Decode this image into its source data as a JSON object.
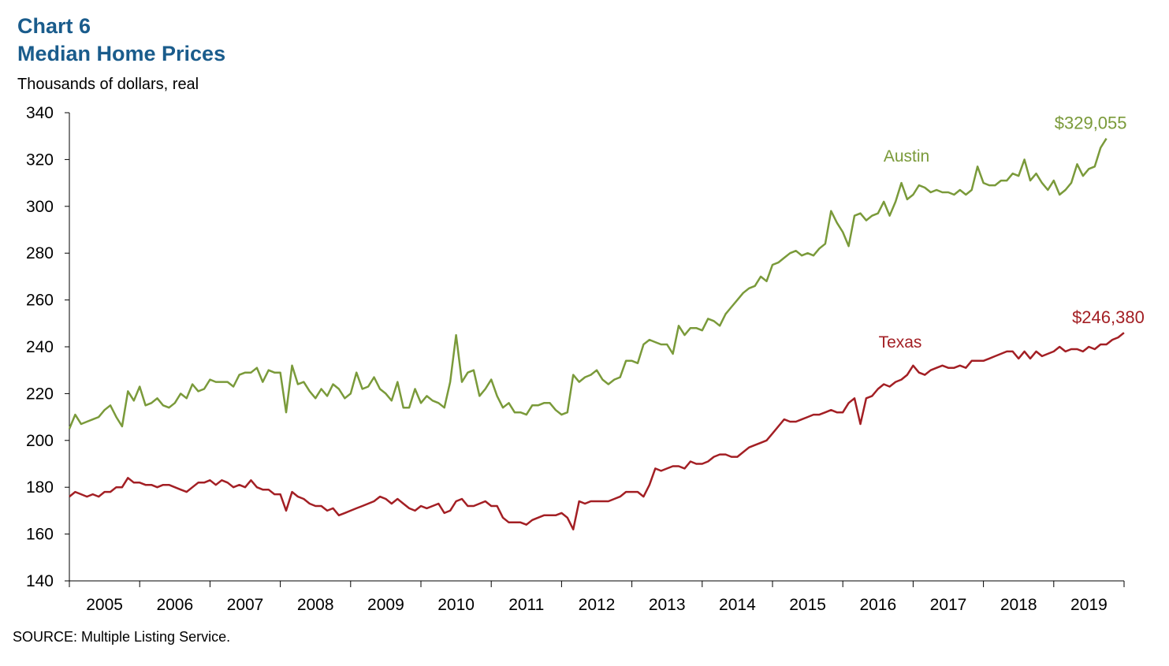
{
  "header": {
    "chart_label": "Chart 6",
    "title": "Median Home Prices",
    "units": "Thousands of dollars, real"
  },
  "footer": {
    "source": "SOURCE: Multiple Listing Service."
  },
  "colors": {
    "austin": "#7a9a3a",
    "texas": "#a31f24",
    "title": "#1a5c8c"
  },
  "chart_data": {
    "type": "line",
    "title": "Median Home Prices",
    "ylabel": "Thousands of dollars, real",
    "ylim": [
      140,
      340
    ],
    "yticks": [
      140,
      160,
      180,
      200,
      220,
      240,
      260,
      280,
      300,
      320,
      340
    ],
    "xlim": [
      2004.5,
      2019.5
    ],
    "year_labels": [
      "2005",
      "2006",
      "2007",
      "2008",
      "2009",
      "2010",
      "2011",
      "2012",
      "2013",
      "2014",
      "2015",
      "2016",
      "2017",
      "2018",
      "2019"
    ],
    "grid": false,
    "series": [
      {
        "name": "Austin",
        "end_label": "$329,055",
        "start": 2004.5,
        "step": 0.08333,
        "values": [
          205,
          211,
          207,
          208,
          209,
          210,
          213,
          215,
          210,
          206,
          221,
          217,
          223,
          215,
          216,
          218,
          215,
          214,
          216,
          220,
          218,
          224,
          221,
          222,
          226,
          225,
          225,
          225,
          223,
          228,
          229,
          229,
          231,
          225,
          230,
          229,
          229,
          212,
          232,
          224,
          225,
          221,
          218,
          222,
          219,
          224,
          222,
          218,
          220,
          229,
          222,
          223,
          227,
          222,
          220,
          217,
          225,
          214,
          214,
          222,
          216,
          219,
          217,
          216,
          214,
          225,
          245,
          225,
          229,
          230,
          219,
          222,
          226,
          219,
          214,
          216,
          212,
          212,
          211,
          215,
          215,
          216,
          216,
          213,
          211,
          212,
          228,
          225,
          227,
          228,
          230,
          226,
          224,
          226,
          227,
          234,
          234,
          233,
          241,
          243,
          242,
          241,
          241,
          237,
          249,
          245,
          248,
          248,
          247,
          252,
          251,
          249,
          254,
          257,
          260,
          263,
          265,
          266,
          270,
          268,
          275,
          276,
          278,
          280,
          281,
          279,
          280,
          279,
          282,
          284,
          298,
          293,
          289,
          283,
          296,
          297,
          294,
          296,
          297,
          302,
          296,
          302,
          310,
          303,
          305,
          309,
          308,
          306,
          307,
          306,
          306,
          305,
          307,
          305,
          307,
          317,
          310,
          309,
          309,
          311,
          311,
          314,
          313,
          320,
          311,
          314,
          310,
          307,
          311,
          305,
          307,
          310,
          318,
          313,
          316,
          317,
          325,
          329
        ]
      },
      {
        "name": "Texas",
        "end_label": "$246,380",
        "start": 2004.5,
        "step": 0.08333,
        "values": [
          176,
          178,
          177,
          176,
          177,
          176,
          178,
          178,
          180,
          180,
          184,
          182,
          182,
          181,
          181,
          180,
          181,
          181,
          180,
          179,
          178,
          180,
          182,
          182,
          183,
          181,
          183,
          182,
          180,
          181,
          180,
          183,
          180,
          179,
          179,
          177,
          177,
          170,
          178,
          176,
          175,
          173,
          172,
          172,
          170,
          171,
          168,
          169,
          170,
          171,
          172,
          173,
          174,
          176,
          175,
          173,
          175,
          173,
          171,
          170,
          172,
          171,
          172,
          173,
          169,
          170,
          174,
          175,
          172,
          172,
          173,
          174,
          172,
          172,
          167,
          165,
          165,
          165,
          164,
          166,
          167,
          168,
          168,
          168,
          169,
          167,
          162,
          174,
          173,
          174,
          174,
          174,
          174,
          175,
          176,
          178,
          178,
          178,
          176,
          181,
          188,
          187,
          188,
          189,
          189,
          188,
          191,
          190,
          190,
          191,
          193,
          194,
          194,
          193,
          193,
          195,
          197,
          198,
          199,
          200,
          203,
          206,
          209,
          208,
          208,
          209,
          210,
          211,
          211,
          212,
          213,
          212,
          212,
          216,
          218,
          207,
          218,
          219,
          222,
          224,
          223,
          225,
          226,
          228,
          232,
          229,
          228,
          230,
          231,
          232,
          231,
          231,
          232,
          231,
          234,
          234,
          234,
          235,
          236,
          237,
          238,
          238,
          235,
          238,
          235,
          238,
          236,
          237,
          238,
          240,
          238,
          239,
          239,
          238,
          240,
          239,
          241,
          241,
          243,
          244,
          246
        ]
      }
    ]
  }
}
